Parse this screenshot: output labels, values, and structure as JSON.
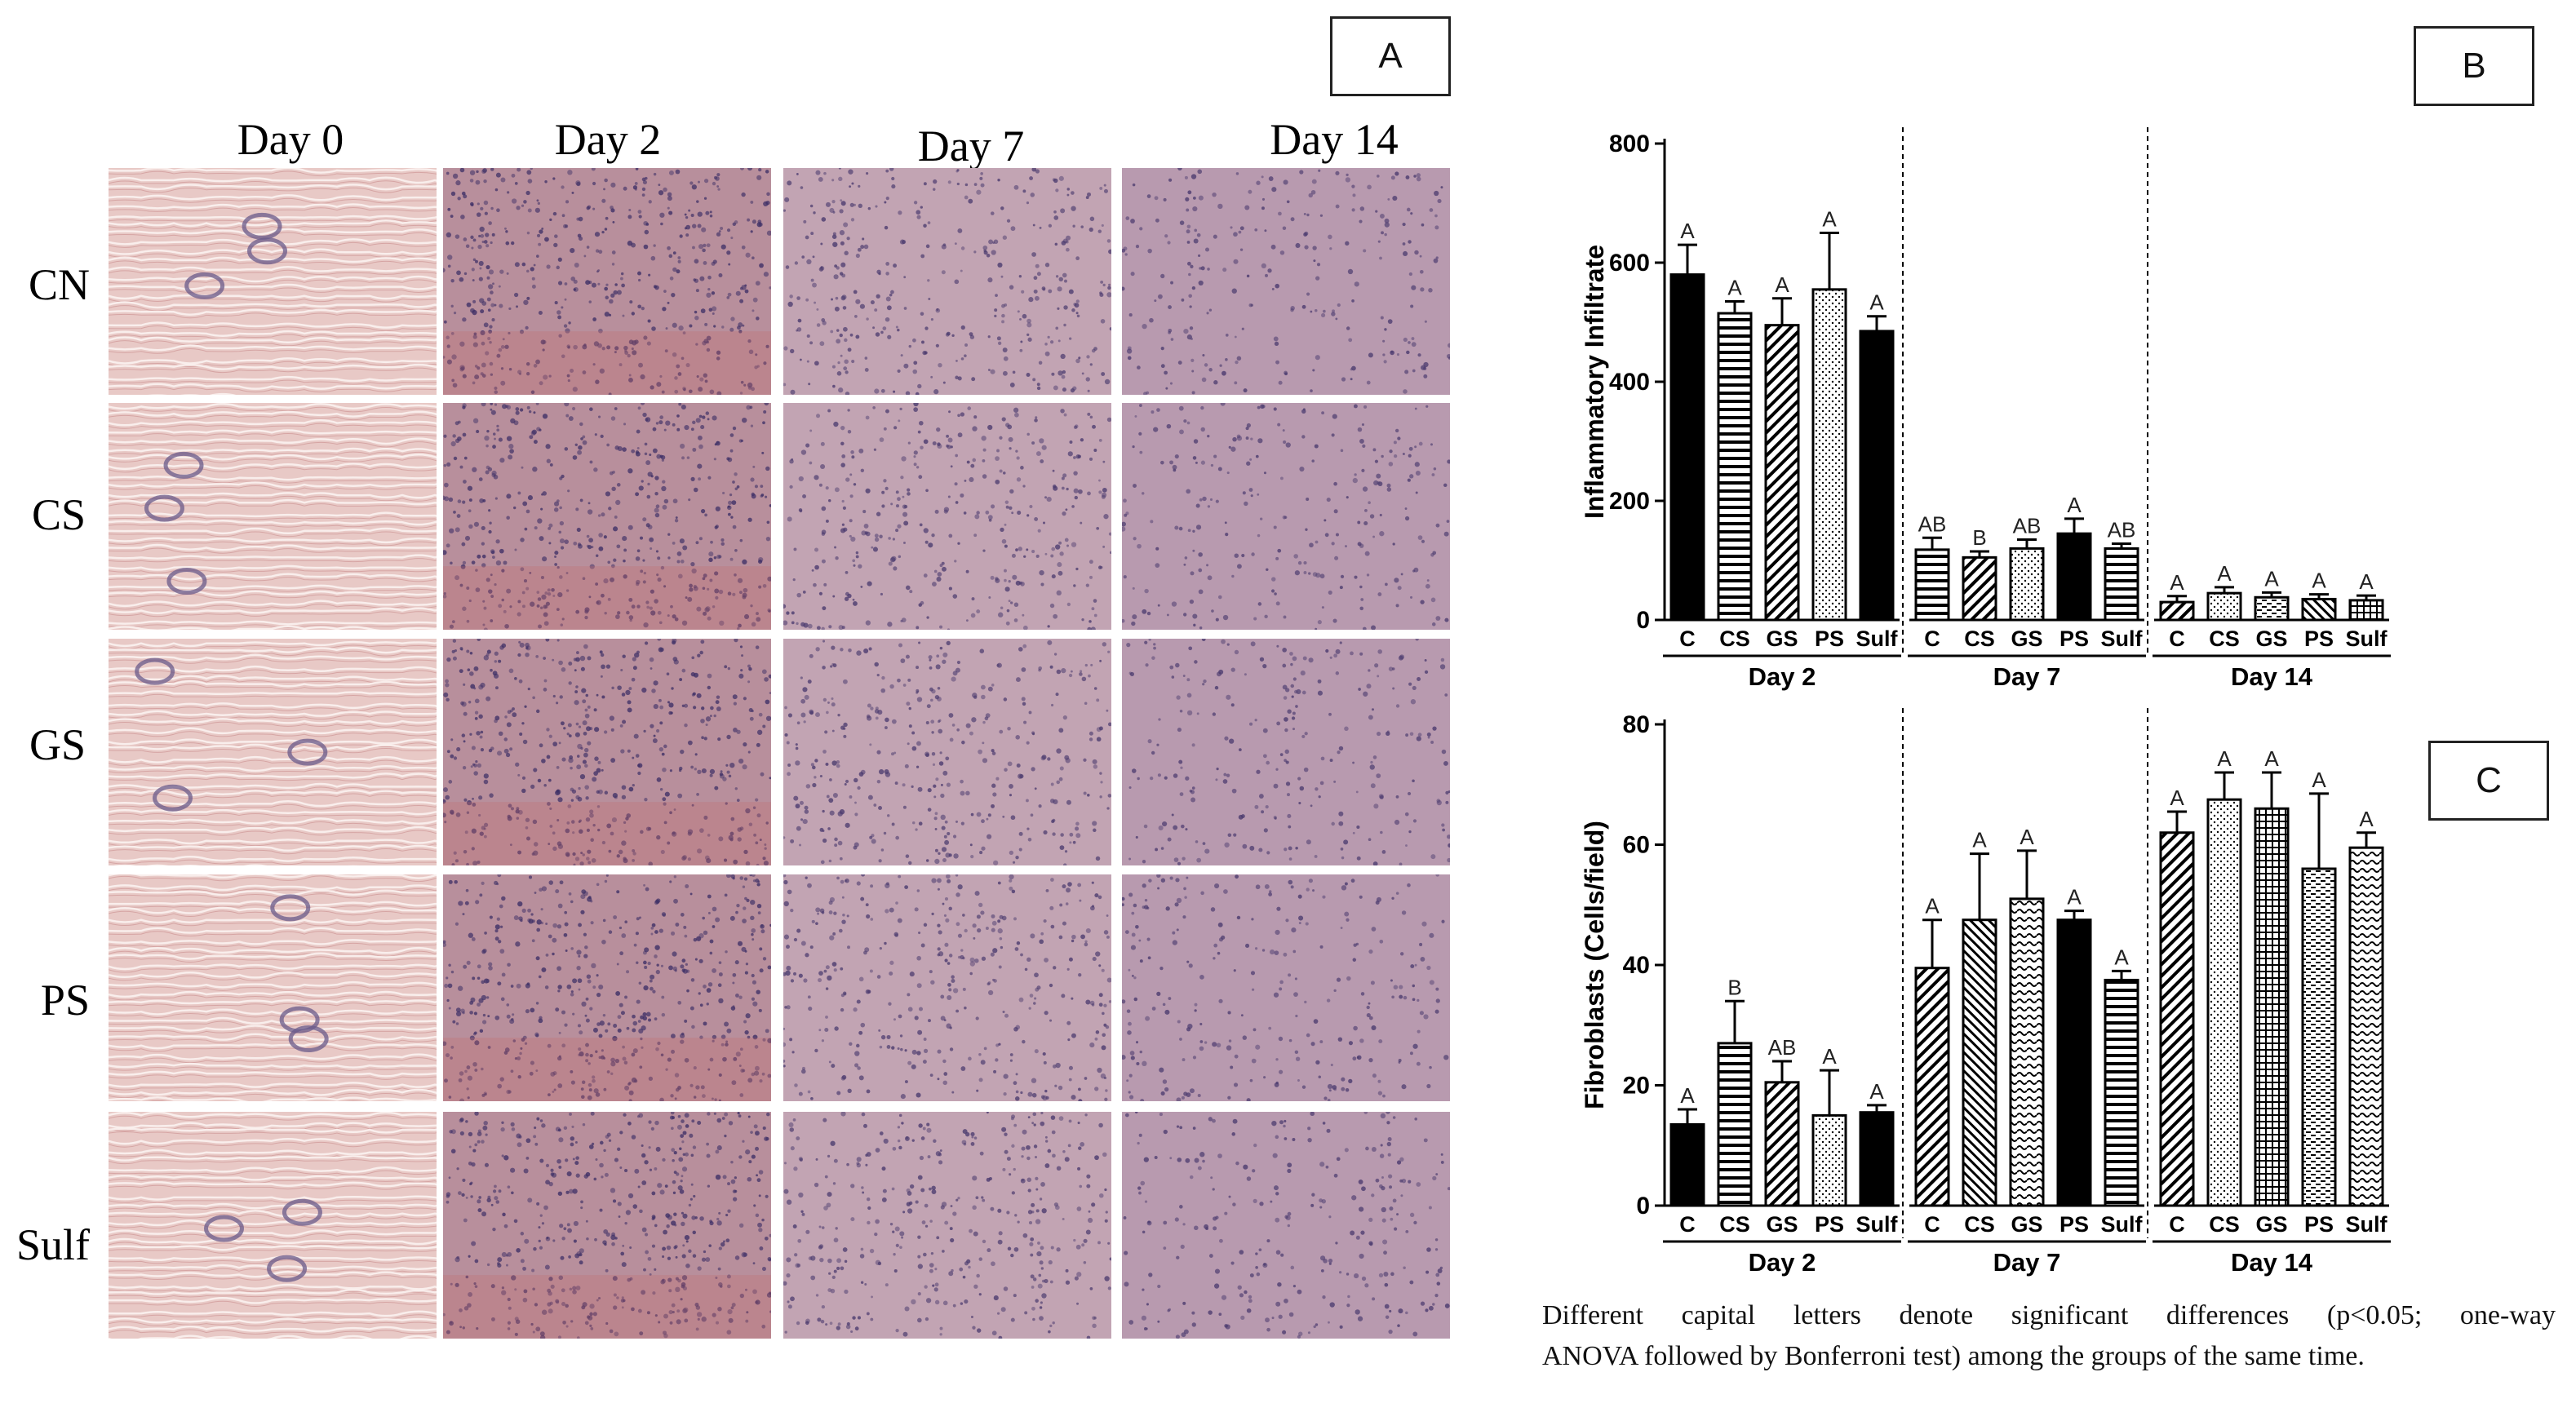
{
  "panel_labels": {
    "a": "A",
    "b": "B",
    "c": "C"
  },
  "micrographs": {
    "columns": [
      "Day 0",
      "Day 2",
      "Day 7",
      "Day 14"
    ],
    "rows": [
      "CN",
      "CS",
      "GS",
      "PS",
      "Sulf"
    ],
    "colors": {
      "day0": "#e8c9c6",
      "day2": "#b88f9c",
      "day7": "#c2a4b3",
      "day14": "#b89aaf"
    }
  },
  "chart_data": [
    {
      "id": "B",
      "type": "bar",
      "ylabel": "Inflammatory Infiltrate",
      "ylim": [
        0,
        800
      ],
      "yticks": [
        "0",
        "200",
        "400",
        "600",
        "800"
      ],
      "groups": [
        "Day 2",
        "Day 7",
        "Day 14"
      ],
      "categories": [
        "C",
        "CS",
        "GS",
        "PS",
        "Sulf"
      ],
      "series": [
        {
          "group": "Day 2",
          "values": [
            580,
            515,
            495,
            555,
            485
          ],
          "errors": [
            50,
            20,
            45,
            95,
            25
          ],
          "letters": [
            "A",
            "A",
            "A",
            "A",
            "A"
          ]
        },
        {
          "group": "Day 7",
          "values": [
            118,
            105,
            120,
            145,
            120
          ],
          "errors": [
            20,
            10,
            15,
            25,
            8
          ],
          "letters": [
            "AB",
            "B",
            "AB",
            "A",
            "AB"
          ]
        },
        {
          "group": "Day 14",
          "values": [
            30,
            45,
            38,
            35,
            33
          ],
          "errors": [
            10,
            10,
            8,
            8,
            8
          ],
          "letters": [
            "A",
            "A",
            "A",
            "A",
            "A"
          ]
        }
      ]
    },
    {
      "id": "C",
      "type": "bar",
      "ylabel": "Fibroblasts (Cells/field)",
      "ylim": [
        0,
        80
      ],
      "yticks": [
        "0",
        "20",
        "40",
        "60",
        "80"
      ],
      "groups": [
        "Day 2",
        "Day 7",
        "Day 14"
      ],
      "categories": [
        "C",
        "CS",
        "GS",
        "PS",
        "Sulf"
      ],
      "series": [
        {
          "group": "Day 2",
          "values": [
            13.5,
            27,
            20.5,
            15,
            15.5
          ],
          "errors": [
            2.5,
            7,
            3.5,
            7.5,
            1.2
          ],
          "letters": [
            "A",
            "B",
            "AB",
            "A",
            "A"
          ]
        },
        {
          "group": "Day 7",
          "values": [
            39.5,
            47.5,
            51,
            47.5,
            37.5
          ],
          "errors": [
            8,
            11,
            8,
            1.5,
            1.5
          ],
          "letters": [
            "A",
            "A",
            "A",
            "A",
            "A"
          ]
        },
        {
          "group": "Day 14",
          "values": [
            62,
            67.5,
            66,
            56,
            59.5
          ],
          "errors": [
            3.5,
            4.5,
            6,
            12.5,
            2.5
          ],
          "letters": [
            "A",
            "A",
            "A",
            "A",
            "A"
          ]
        }
      ]
    }
  ],
  "caption": {
    "line1": "Different capital letters denote significant differences (p<0.05; one-way",
    "line2": "ANOVA followed by Bonferroni test) among the groups of the same time."
  }
}
